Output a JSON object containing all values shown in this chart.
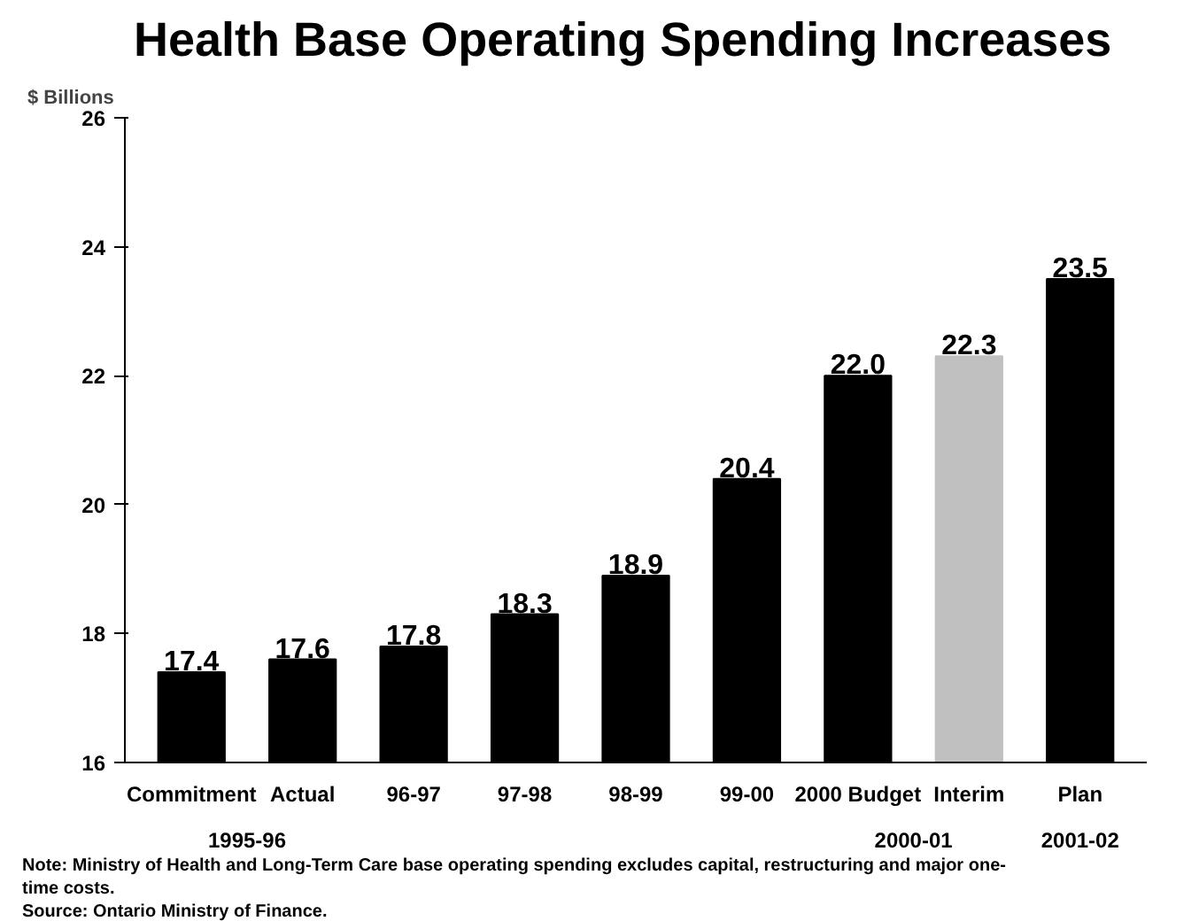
{
  "chart_data": {
    "type": "bar",
    "title": "Health Base Operating Spending Increases",
    "ylabel": "$ Billions",
    "categories": [
      "Commitment",
      "Actual",
      "96-97",
      "97-98",
      "98-99",
      "99-00",
      "2000 Budget",
      "Interim",
      "Plan"
    ],
    "values": [
      17.4,
      17.6,
      17.8,
      18.3,
      18.9,
      20.4,
      22.0,
      22.3,
      23.5
    ],
    "colors": [
      "#000000",
      "#000000",
      "#000000",
      "#000000",
      "#000000",
      "#000000",
      "#000000",
      "#c0c0c0",
      "#000000"
    ],
    "value_labels": [
      "17.4",
      "17.6",
      "17.8",
      "18.3",
      "18.9",
      "20.4",
      "22.0",
      "22.3",
      "23.5"
    ],
    "ylim": [
      16,
      26
    ],
    "yticks": [
      16,
      18,
      20,
      22,
      24,
      26
    ],
    "grid": false,
    "annotations": [
      "1995-96",
      "2000-01",
      "2001-02",
      "Note: Ministry of Health and Long-Term Care base operating spending excludes capital, restructuring and major one-time costs.",
      "Source:  Ontario Ministry of Finance."
    ]
  }
}
